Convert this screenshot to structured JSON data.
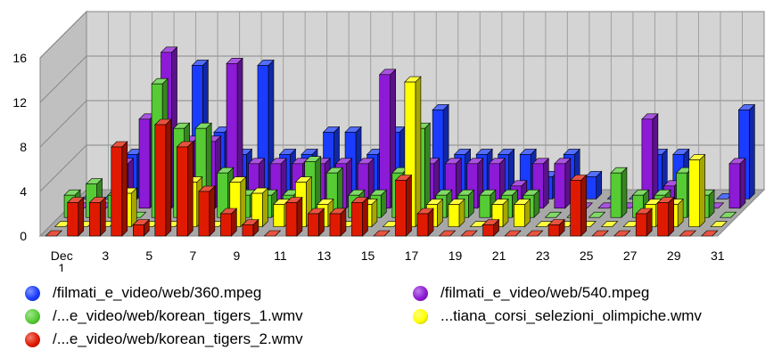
{
  "chart_data": {
    "type": "bar",
    "style": "3d-clustered-columns",
    "x_tick_labels": [
      "Dec\n1",
      "3",
      "5",
      "7",
      "9",
      "11",
      "13",
      "15",
      "17",
      "19",
      "21",
      "23",
      "25",
      "27",
      "29",
      "31"
    ],
    "y_ticks": [
      0,
      4,
      8,
      12,
      16
    ],
    "ylim": [
      0,
      16
    ],
    "grid": true,
    "legend_position": "bottom",
    "categories": [
      "1",
      "2",
      "3",
      "4",
      "5",
      "6",
      "7",
      "8",
      "9",
      "10",
      "11",
      "12",
      "13",
      "14",
      "15",
      "16",
      "17",
      "18",
      "19",
      "20",
      "21",
      "22",
      "23",
      "24",
      "25",
      "26",
      "27",
      "28",
      "29",
      "30",
      "31"
    ],
    "series": [
      {
        "name": "/filmati_e_video/web/360.mpeg",
        "color": "#1a3cff",
        "values": [
          0,
          0,
          4,
          4,
          4,
          12,
          6,
          4,
          12,
          4,
          4,
          6,
          6,
          4,
          6,
          0,
          8,
          4,
          4,
          4,
          4,
          2,
          4,
          2,
          0,
          0,
          4,
          4,
          0,
          0,
          8
        ]
      },
      {
        "name": "/filmati_e_video/web/540.mpeg",
        "color": "#8c1ad6",
        "values": [
          0,
          0,
          4,
          8,
          14,
          6,
          6,
          13,
          4,
          4,
          4,
          4,
          4,
          4,
          12,
          2,
          4,
          4,
          4,
          4,
          2,
          4,
          4,
          0,
          0,
          0,
          8,
          2,
          0,
          0,
          4
        ]
      },
      {
        "name": "/...e_video/web/korean_tigers_1.wmv",
        "color": "#55cc33",
        "values": [
          2,
          3,
          2,
          0,
          12,
          8,
          8,
          4,
          2,
          2,
          2,
          5,
          4,
          2,
          2,
          4,
          8,
          2,
          2,
          2,
          2,
          2,
          0,
          0,
          0,
          4,
          2,
          2,
          4,
          2,
          0
        ]
      },
      {
        "name": "...tiana_corsi_selezioni_olimpiche.wmv",
        "color": "#ffff00",
        "values": [
          0,
          0,
          0,
          3,
          0,
          0,
          4,
          0,
          4,
          3,
          2,
          4,
          2,
          0,
          2,
          0,
          13,
          2,
          2,
          0,
          2,
          2,
          0,
          0,
          0,
          0,
          0,
          2,
          2,
          6,
          0
        ]
      },
      {
        "name": "/...e_video/web/korean_tigers_2.wmv",
        "color": "#e01a00",
        "values": [
          0,
          3,
          3,
          8,
          1,
          10,
          8,
          4,
          2,
          1,
          0,
          3,
          2,
          2,
          3,
          0,
          5,
          2,
          0,
          0,
          1,
          0,
          0,
          1,
          5,
          0,
          0,
          2,
          3,
          0,
          0
        ]
      }
    ]
  }
}
